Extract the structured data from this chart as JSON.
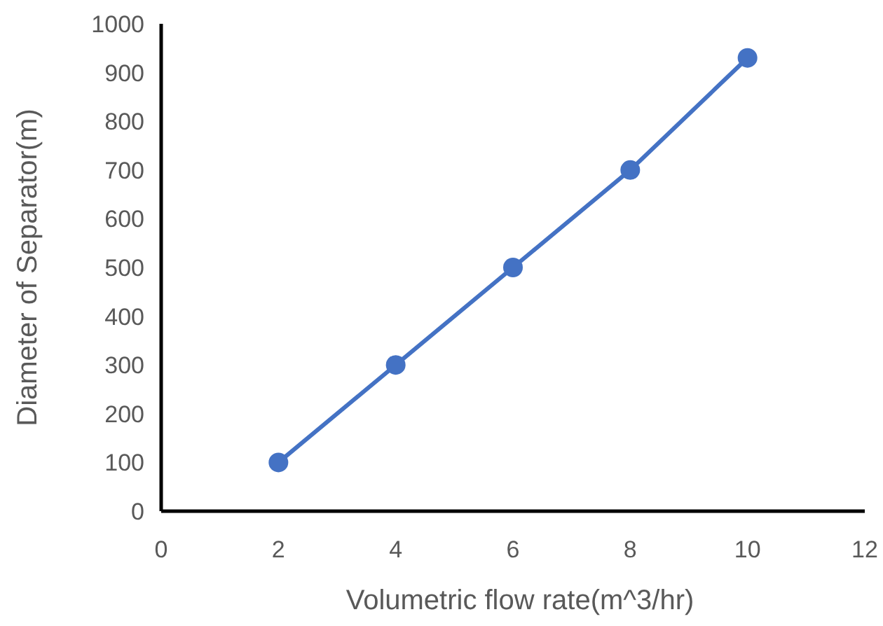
{
  "chart_data": {
    "type": "line",
    "xlabel": "Volumetric flow rate(m^3/hr)",
    "ylabel": "Diameter of Separator(m)",
    "x": [
      2,
      4,
      6,
      8,
      10
    ],
    "series": [
      {
        "color": "#4472c4",
        "values": [
          100,
          300,
          500,
          700,
          930
        ]
      }
    ],
    "xlim": [
      0,
      12
    ],
    "xticks": [
      0,
      2,
      4,
      6,
      8,
      10,
      12
    ],
    "ylim": [
      0,
      1000
    ],
    "yticks": [
      0,
      100,
      200,
      300,
      400,
      500,
      600,
      700,
      800,
      900,
      1000
    ],
    "grid": false,
    "marker": "circle",
    "line_style": "solid"
  }
}
